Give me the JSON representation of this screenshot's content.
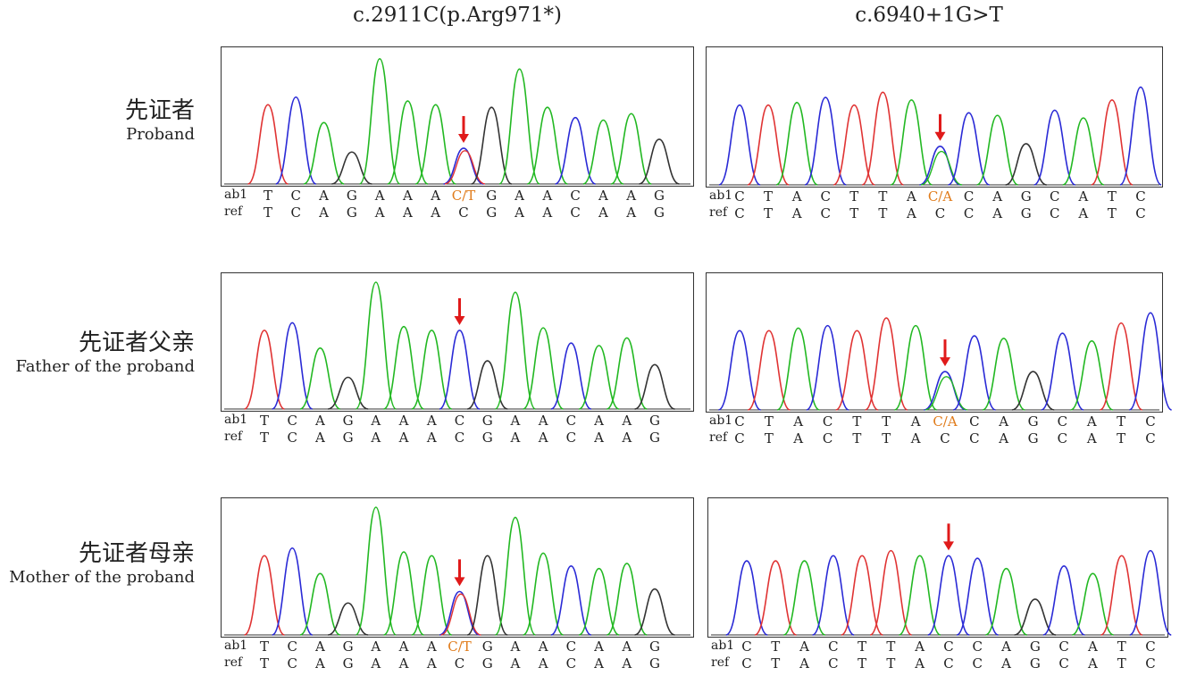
{
  "columns": [
    {
      "title": "c.2911C(p.Arg971*)"
    },
    {
      "title": "c.6940+1G>T"
    }
  ],
  "rows": [
    {
      "cn": "先证者",
      "en": "Proband"
    },
    {
      "cn": "先证者父亲",
      "en": "Father of the proband"
    },
    {
      "cn": "先证者母亲",
      "en": "Mother of the proband"
    }
  ],
  "seq_labels": {
    "ab1": "ab1",
    "ref": "ref"
  },
  "base_colors": {
    "A": "#22b822",
    "C": "#2a2ad6",
    "G": "#333333",
    "T": "#e03333",
    "arrow": "#e01a1a",
    "het_text": "#e07b1a"
  },
  "panels": [
    {
      "id": "p00",
      "ab1": [
        "T",
        "C",
        "A",
        "G",
        "A",
        "A",
        "A",
        "C/T",
        "G",
        "A",
        "A",
        "C",
        "A",
        "A",
        "G"
      ],
      "ref": [
        "T",
        "C",
        "A",
        "G",
        "A",
        "A",
        "A",
        "C",
        "G",
        "A",
        "A",
        "C",
        "A",
        "A",
        "G"
      ],
      "peaks": [
        {
          "base": "T",
          "h": 0.62
        },
        {
          "base": "C",
          "h": 0.68
        },
        {
          "base": "A",
          "h": 0.48
        },
        {
          "base": "G",
          "h": 0.25
        },
        {
          "base": "A",
          "h": 0.98
        },
        {
          "base": "A",
          "h": 0.65
        },
        {
          "base": "A",
          "h": 0.62
        },
        {
          "base": "C",
          "h": 0.28,
          "het": "T",
          "h2": 0.26
        },
        {
          "base": "G",
          "h": 0.6
        },
        {
          "base": "A",
          "h": 0.9
        },
        {
          "base": "A",
          "h": 0.6
        },
        {
          "base": "C",
          "h": 0.52
        },
        {
          "base": "A",
          "h": 0.5
        },
        {
          "base": "A",
          "h": 0.55
        },
        {
          "base": "G",
          "h": 0.35
        }
      ],
      "arrow_index": 7
    },
    {
      "id": "p01",
      "ab1": [
        "C",
        "T",
        "A",
        "C",
        "T",
        "T",
        "A",
        "C/A",
        "C",
        "A",
        "G",
        "C",
        "A",
        "T",
        "C"
      ],
      "ref": [
        "C",
        "T",
        "A",
        "C",
        "T",
        "T",
        "A",
        "C",
        "C",
        "A",
        "G",
        "C",
        "A",
        "T",
        "C"
      ],
      "peaks": [
        {
          "base": "C",
          "h": 0.62
        },
        {
          "base": "T",
          "h": 0.62
        },
        {
          "base": "A",
          "h": 0.64
        },
        {
          "base": "C",
          "h": 0.68
        },
        {
          "base": "T",
          "h": 0.62
        },
        {
          "base": "T",
          "h": 0.72
        },
        {
          "base": "A",
          "h": 0.66
        },
        {
          "base": "C",
          "h": 0.3,
          "het": "A",
          "h2": 0.26
        },
        {
          "base": "C",
          "h": 0.56
        },
        {
          "base": "A",
          "h": 0.54
        },
        {
          "base": "G",
          "h": 0.32
        },
        {
          "base": "C",
          "h": 0.58
        },
        {
          "base": "A",
          "h": 0.52
        },
        {
          "base": "T",
          "h": 0.66
        },
        {
          "base": "C",
          "h": 0.76
        }
      ],
      "arrow_index": 7
    },
    {
      "id": "p10",
      "ab1": [
        "T",
        "C",
        "A",
        "G",
        "A",
        "A",
        "A",
        "C",
        "G",
        "A",
        "A",
        "C",
        "A",
        "A",
        "G"
      ],
      "ref": [
        "T",
        "C",
        "A",
        "G",
        "A",
        "A",
        "A",
        "C",
        "G",
        "A",
        "A",
        "C",
        "A",
        "A",
        "G"
      ],
      "peaks": [
        {
          "base": "T",
          "h": 0.62
        },
        {
          "base": "C",
          "h": 0.68
        },
        {
          "base": "A",
          "h": 0.48
        },
        {
          "base": "G",
          "h": 0.25
        },
        {
          "base": "A",
          "h": 1.0
        },
        {
          "base": "A",
          "h": 0.65
        },
        {
          "base": "A",
          "h": 0.62
        },
        {
          "base": "C",
          "h": 0.62
        },
        {
          "base": "G",
          "h": 0.38
        },
        {
          "base": "A",
          "h": 0.92
        },
        {
          "base": "A",
          "h": 0.64
        },
        {
          "base": "C",
          "h": 0.52
        },
        {
          "base": "A",
          "h": 0.5
        },
        {
          "base": "A",
          "h": 0.56
        },
        {
          "base": "G",
          "h": 0.35
        }
      ],
      "arrow_index": 7
    },
    {
      "id": "p11",
      "ab1": [
        "C",
        "T",
        "A",
        "C",
        "T",
        "T",
        "A",
        "C/A",
        "C",
        "A",
        "G",
        "C",
        "A",
        "T",
        "C"
      ],
      "ref": [
        "C",
        "T",
        "A",
        "C",
        "T",
        "T",
        "A",
        "C",
        "C",
        "A",
        "G",
        "C",
        "A",
        "T",
        "C"
      ],
      "peaks": [
        {
          "base": "C",
          "h": 0.62
        },
        {
          "base": "T",
          "h": 0.62
        },
        {
          "base": "A",
          "h": 0.64
        },
        {
          "base": "C",
          "h": 0.66
        },
        {
          "base": "T",
          "h": 0.62
        },
        {
          "base": "T",
          "h": 0.72
        },
        {
          "base": "A",
          "h": 0.66
        },
        {
          "base": "C",
          "h": 0.3,
          "het": "A",
          "h2": 0.26
        },
        {
          "base": "C",
          "h": 0.58
        },
        {
          "base": "A",
          "h": 0.56
        },
        {
          "base": "G",
          "h": 0.3
        },
        {
          "base": "C",
          "h": 0.6
        },
        {
          "base": "A",
          "h": 0.54
        },
        {
          "base": "T",
          "h": 0.68
        },
        {
          "base": "C",
          "h": 0.76
        }
      ],
      "arrow_index": 7
    },
    {
      "id": "p20",
      "ab1": [
        "T",
        "C",
        "A",
        "G",
        "A",
        "A",
        "A",
        "C/T",
        "G",
        "A",
        "A",
        "C",
        "A",
        "A",
        "G"
      ],
      "ref": [
        "T",
        "C",
        "A",
        "G",
        "A",
        "A",
        "A",
        "C",
        "G",
        "A",
        "A",
        "C",
        "A",
        "A",
        "G"
      ],
      "peaks": [
        {
          "base": "T",
          "h": 0.62
        },
        {
          "base": "C",
          "h": 0.68
        },
        {
          "base": "A",
          "h": 0.48
        },
        {
          "base": "G",
          "h": 0.25
        },
        {
          "base": "A",
          "h": 1.0
        },
        {
          "base": "A",
          "h": 0.65
        },
        {
          "base": "A",
          "h": 0.62
        },
        {
          "base": "C",
          "h": 0.34,
          "het": "T",
          "h2": 0.32
        },
        {
          "base": "G",
          "h": 0.62
        },
        {
          "base": "A",
          "h": 0.92
        },
        {
          "base": "A",
          "h": 0.64
        },
        {
          "base": "C",
          "h": 0.54
        },
        {
          "base": "A",
          "h": 0.52
        },
        {
          "base": "A",
          "h": 0.56
        },
        {
          "base": "G",
          "h": 0.36
        }
      ],
      "arrow_index": 7
    },
    {
      "id": "p21",
      "ab1": [
        "C",
        "T",
        "A",
        "C",
        "T",
        "T",
        "A",
        "C",
        "C",
        "A",
        "G",
        "C",
        "A",
        "T",
        "C"
      ],
      "ref": [
        "C",
        "T",
        "A",
        "C",
        "T",
        "T",
        "A",
        "C",
        "C",
        "A",
        "G",
        "C",
        "A",
        "T",
        "C"
      ],
      "peaks": [
        {
          "base": "C",
          "h": 0.58
        },
        {
          "base": "T",
          "h": 0.58
        },
        {
          "base": "A",
          "h": 0.58
        },
        {
          "base": "C",
          "h": 0.62
        },
        {
          "base": "T",
          "h": 0.62
        },
        {
          "base": "T",
          "h": 0.66
        },
        {
          "base": "A",
          "h": 0.62
        },
        {
          "base": "C",
          "h": 0.62
        },
        {
          "base": "C",
          "h": 0.6
        },
        {
          "base": "A",
          "h": 0.52
        },
        {
          "base": "G",
          "h": 0.28
        },
        {
          "base": "C",
          "h": 0.54
        },
        {
          "base": "A",
          "h": 0.48
        },
        {
          "base": "T",
          "h": 0.62
        },
        {
          "base": "C",
          "h": 0.66
        }
      ],
      "arrow_index": 7
    }
  ]
}
